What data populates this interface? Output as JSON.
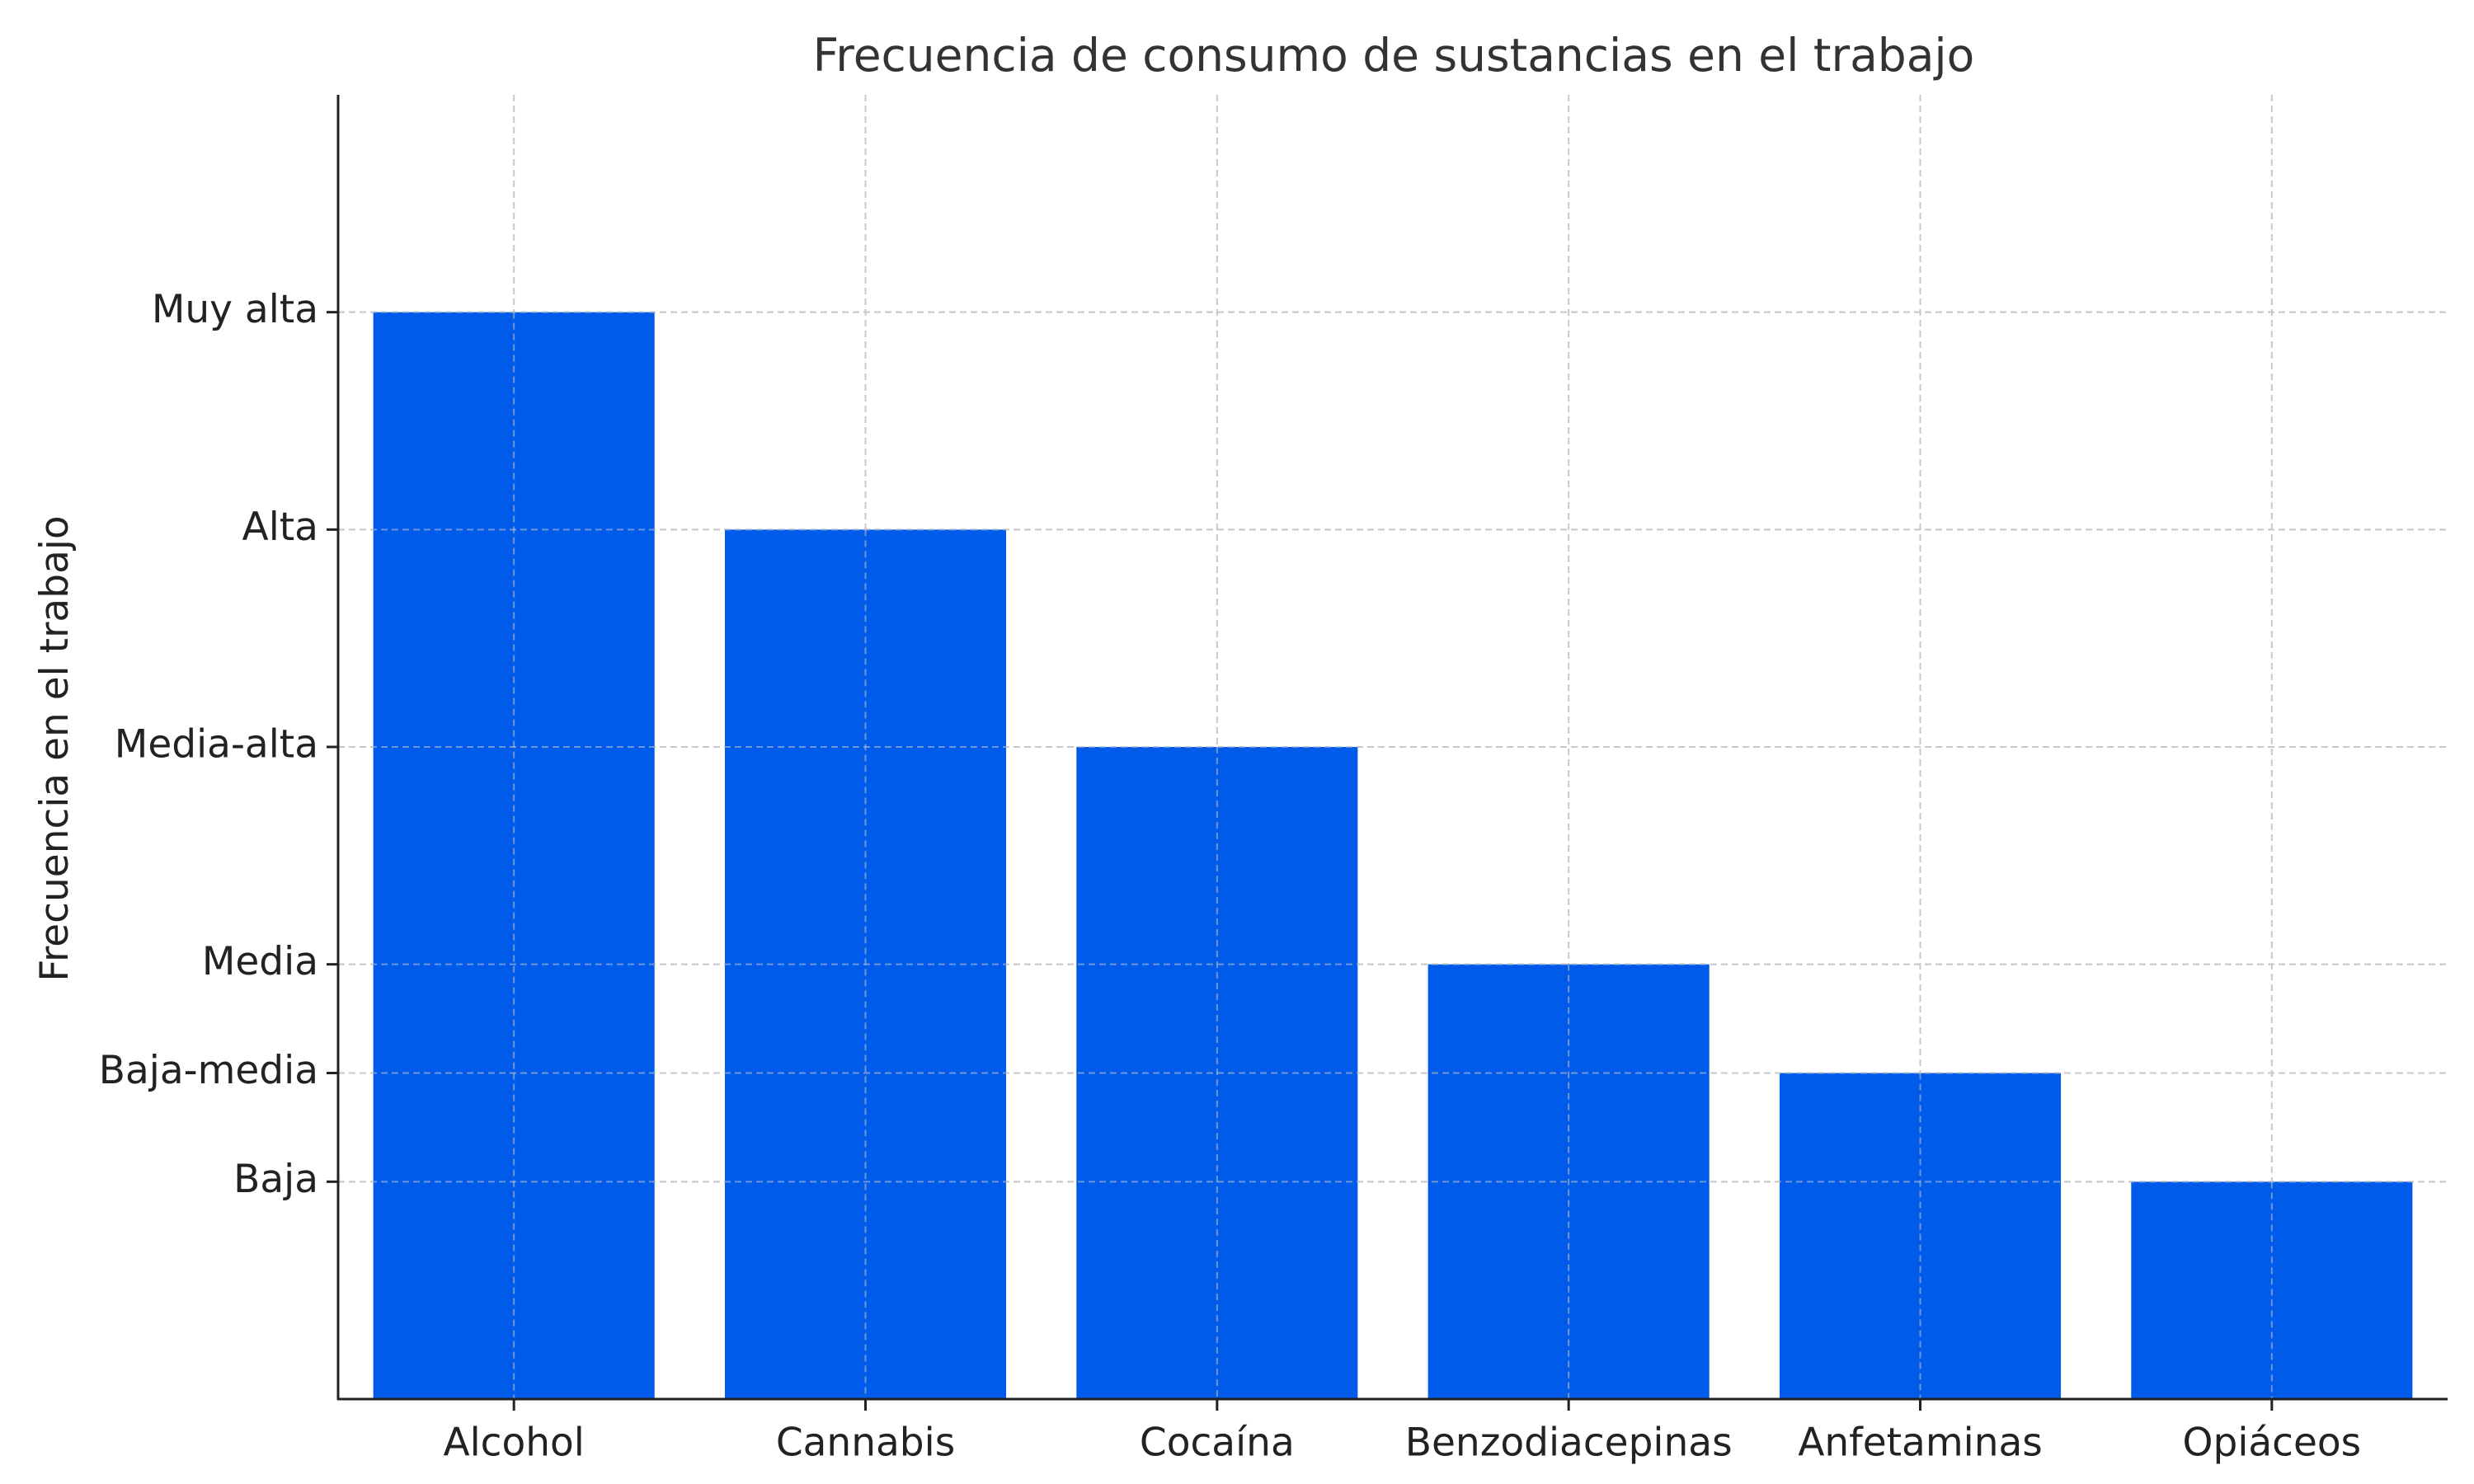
{
  "chart_data": {
    "type": "bar",
    "title": "Frecuencia de consumo de sustancias en el trabajo",
    "xlabel": "",
    "ylabel": "Frecuencia en el trabajo",
    "categories": [
      "Alcohol",
      "Cannabis",
      "Cocaína",
      "Benzodiacepinas",
      "Anfetaminas",
      "Opiáceos"
    ],
    "values": [
      5,
      4,
      3,
      2,
      1.5,
      1
    ],
    "y_ticks": [
      {
        "value": 1,
        "label": "Baja"
      },
      {
        "value": 1.5,
        "label": "Baja-media"
      },
      {
        "value": 2,
        "label": "Media"
      },
      {
        "value": 3,
        "label": "Media-alta"
      },
      {
        "value": 4,
        "label": "Alta"
      },
      {
        "value": 5,
        "label": "Muy alta"
      }
    ],
    "ylim": [
      0,
      6
    ],
    "grid": true,
    "bar_color": "#005BEB",
    "grid_color": "#c8c8c8",
    "axis_color": "#222222"
  }
}
